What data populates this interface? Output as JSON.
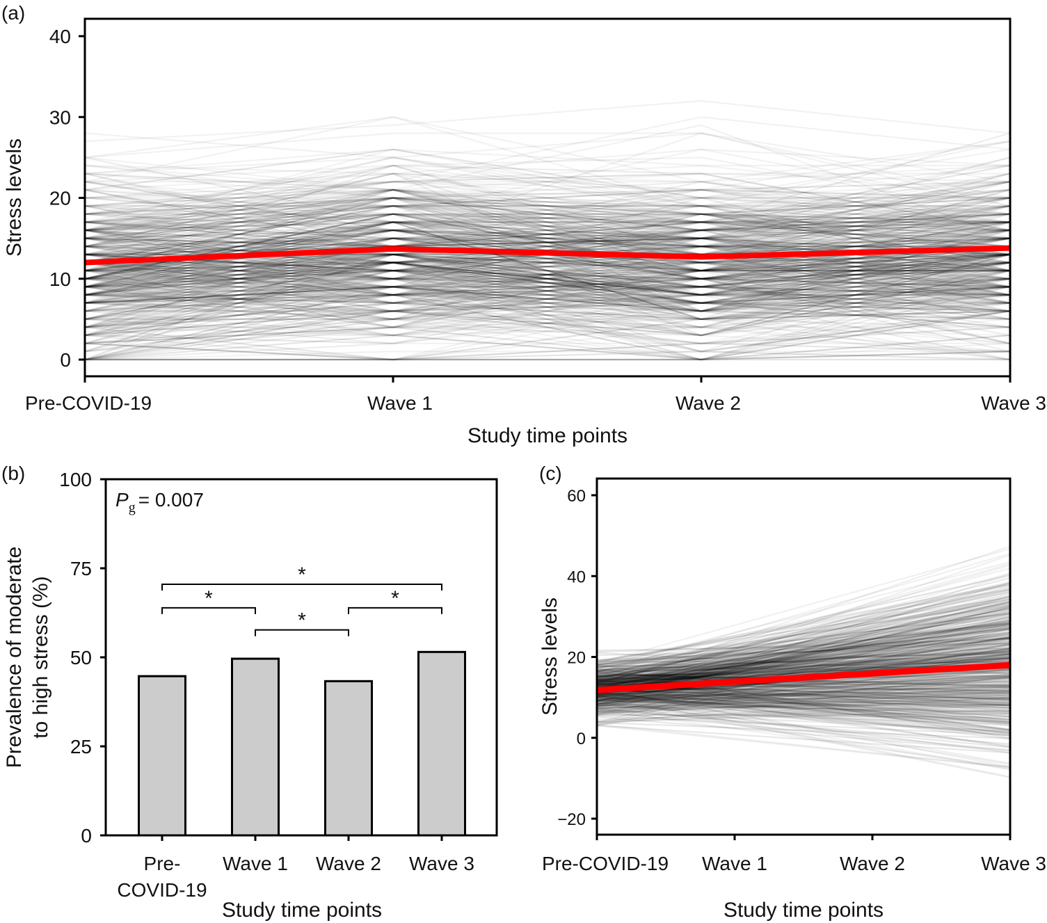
{
  "figure": {
    "panels": [
      "(a)",
      "(b)",
      "(c)"
    ]
  },
  "chart_data": [
    {
      "id": "a",
      "panel_label": "(a)",
      "type": "line",
      "title": "",
      "xlabel": "Study time points",
      "ylabel": "Stress levels",
      "categories": [
        "Pre-COVID-19",
        "Wave 1",
        "Wave 2",
        "Wave 3"
      ],
      "yticks": [
        0,
        10,
        20,
        30,
        40
      ],
      "ylim": [
        -2,
        42
      ],
      "grid": false,
      "individual_trajectories": {
        "description": "Many semi-transparent grey lines, one per participant (spaghetti plot)",
        "value_range": [
          0,
          36
        ],
        "typical_range": [
          4,
          22
        ],
        "color": "#000000"
      },
      "series": [
        {
          "name": "Mean trajectory",
          "color": "#ff0000",
          "values": [
            12.0,
            13.7,
            12.7,
            13.8
          ]
        }
      ]
    },
    {
      "id": "b",
      "panel_label": "(b)",
      "type": "bar",
      "title": "",
      "xlabel": "Study time points",
      "ylabel": "Prevalence of moderate to high stress (%)",
      "ylabel_lines": [
        "Prevalence of moderate",
        "to high stress (%)"
      ],
      "categories": [
        "Pre-COVID-19",
        "Wave 1",
        "Wave 2",
        "Wave 3"
      ],
      "category_label_lines": [
        [
          "Pre-",
          "COVID-19"
        ],
        [
          "Wave 1"
        ],
        [
          "Wave 2"
        ],
        [
          "Wave 3"
        ]
      ],
      "values": [
        44.7,
        49.6,
        43.3,
        51.5
      ],
      "bar_color": "#cccccc",
      "yticks": [
        0,
        25,
        50,
        75,
        100
      ],
      "ylim": [
        0,
        100
      ],
      "grid": false,
      "annotation": {
        "symbol": "P",
        "subscript": "g",
        "text": "= 0.007"
      },
      "significance_brackets": [
        {
          "from": "Pre-COVID-19",
          "to": "Wave 3",
          "label": "*",
          "level": 70.5
        },
        {
          "from": "Pre-COVID-19",
          "to": "Wave 1",
          "label": "*",
          "level": 63.9
        },
        {
          "from": "Wave 2",
          "to": "Wave 3",
          "label": "*",
          "level": 63.9
        },
        {
          "from": "Wave 1",
          "to": "Wave 2",
          "label": "*",
          "level": 57.7
        }
      ]
    },
    {
      "id": "c",
      "panel_label": "(c)",
      "type": "line",
      "title": "",
      "xlabel": "Study time points",
      "ylabel": "Stress levels",
      "categories": [
        "Pre-COVID-19",
        "Wave 1",
        "Wave 2",
        "Wave 3"
      ],
      "yticks": [
        -20,
        0,
        20,
        40,
        60
      ],
      "ylim": [
        -24,
        64
      ],
      "grid": false,
      "individual_trajectories": {
        "description": "Fitted linear trajectories per participant, fanning out over time",
        "start_range": [
          3,
          23
        ],
        "end_range": [
          -14,
          54
        ],
        "color": "#000000"
      },
      "series": [
        {
          "name": "Mean fitted trajectory",
          "color": "#ff0000",
          "values": [
            11.8,
            13.9,
            15.9,
            18.0
          ]
        }
      ]
    }
  ]
}
